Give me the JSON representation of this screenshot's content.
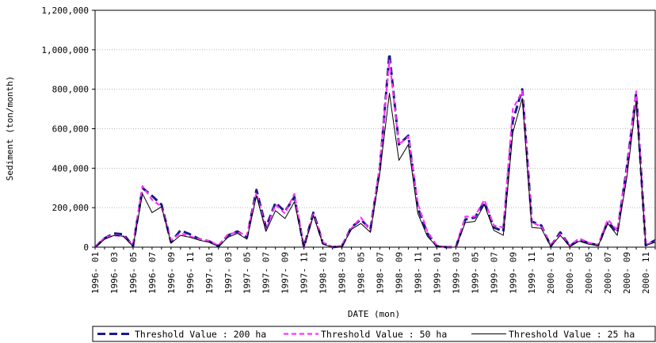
{
  "chart_data": {
    "type": "line",
    "title": "",
    "xlabel": "DATE (mon)",
    "ylabel": "Sediment (ton/month)",
    "ylim": [
      0,
      1200000
    ],
    "yticks": [
      0,
      200000,
      400000,
      600000,
      800000,
      1000000,
      1200000
    ],
    "ytick_labels": [
      "0",
      "200,000",
      "400,000",
      "600,000",
      "800,000",
      "1,000,000",
      "1,200,000"
    ],
    "grid": "horizontal dotted",
    "legend_position": "bottom",
    "x": [
      "1996-01",
      "1996-02",
      "1996-03",
      "1996-04",
      "1996-05",
      "1996-06",
      "1996-07",
      "1996-08",
      "1996-09",
      "1996-10",
      "1996-11",
      "1996-12",
      "1997-01",
      "1997-02",
      "1997-03",
      "1997-04",
      "1997-05",
      "1997-06",
      "1997-07",
      "1997-08",
      "1997-09",
      "1997-10",
      "1997-11",
      "1997-12",
      "1998-01",
      "1998-02",
      "1998-03",
      "1998-04",
      "1998-05",
      "1998-06",
      "1998-07",
      "1998-08",
      "1998-09",
      "1998-10",
      "1998-11",
      "1998-12",
      "1999-01",
      "1999-02",
      "1999-03",
      "1999-04",
      "1999-05",
      "1999-06",
      "1999-07",
      "1999-08",
      "1999-09",
      "1999-10",
      "1999-11",
      "1999-12",
      "2000-01",
      "2000-02",
      "2000-03",
      "2000-04",
      "2000-05",
      "2000-06",
      "2000-07",
      "2000-08",
      "2000-09",
      "2000-10",
      "2000-11",
      "2000-12"
    ],
    "x_tick_labels": [
      "1996- 01",
      "1996- 03",
      "1996- 05",
      "1996- 07",
      "1996- 09",
      "1996- 11",
      "1997- 01",
      "1997- 03",
      "1997- 05",
      "1997- 07",
      "1997- 09",
      "1997- 11",
      "1998- 01",
      "1998- 03",
      "1998- 05",
      "1998- 07",
      "1998- 09",
      "1998- 11",
      "1999- 01",
      "1999- 03",
      "1999- 05",
      "1999- 07",
      "1999- 09",
      "1999- 11",
      "2000- 01",
      "2000- 03",
      "2000- 05",
      "2000- 07",
      "2000- 09",
      "2000- 11"
    ],
    "series": [
      {
        "name": "Threshold Value : 200 ha",
        "color": "#1a1a8c",
        "style": "dashed-thick",
        "values": [
          0,
          45000,
          70000,
          65000,
          5000,
          300000,
          260000,
          215000,
          25000,
          85000,
          65000,
          40000,
          30000,
          5000,
          60000,
          80000,
          50000,
          290000,
          100000,
          225000,
          180000,
          255000,
          0,
          175000,
          20000,
          0,
          5000,
          100000,
          140000,
          90000,
          400000,
          980000,
          520000,
          565000,
          200000,
          70000,
          5000,
          0,
          0,
          140000,
          150000,
          230000,
          100000,
          80000,
          640000,
          800000,
          130000,
          110000,
          5000,
          75000,
          5000,
          40000,
          20000,
          10000,
          130000,
          75000,
          400000,
          780000,
          10000,
          35000
        ]
      },
      {
        "name": "Threshold Value : 50 ha",
        "color": "#ff33ff",
        "style": "dashed",
        "values": [
          0,
          48000,
          60000,
          55000,
          10000,
          310000,
          240000,
          205000,
          35000,
          70000,
          55000,
          40000,
          30000,
          10000,
          65000,
          75000,
          60000,
          275000,
          85000,
          215000,
          170000,
          270000,
          0,
          165000,
          25000,
          0,
          8000,
          95000,
          150000,
          80000,
          420000,
          950000,
          520000,
          560000,
          220000,
          80000,
          8000,
          0,
          0,
          155000,
          155000,
          240000,
          110000,
          100000,
          700000,
          790000,
          125000,
          105000,
          8000,
          65000,
          8000,
          45000,
          22000,
          12000,
          140000,
          85000,
          390000,
          790000,
          12000,
          30000
        ]
      },
      {
        "name": "Threshold Value : 25 ha",
        "color": "#000000",
        "style": "solid",
        "values": [
          0,
          40000,
          60000,
          55000,
          3000,
          270000,
          175000,
          205000,
          20000,
          60000,
          50000,
          35000,
          25000,
          3000,
          50000,
          70000,
          40000,
          260000,
          80000,
          185000,
          145000,
          230000,
          0,
          160000,
          15000,
          0,
          3000,
          90000,
          120000,
          75000,
          380000,
          780000,
          440000,
          520000,
          170000,
          55000,
          3000,
          0,
          0,
          125000,
          130000,
          215000,
          85000,
          60000,
          580000,
          755000,
          100000,
          95000,
          3000,
          60000,
          3000,
          30000,
          15000,
          8000,
          120000,
          60000,
          350000,
          740000,
          8000,
          25000
        ]
      }
    ]
  }
}
